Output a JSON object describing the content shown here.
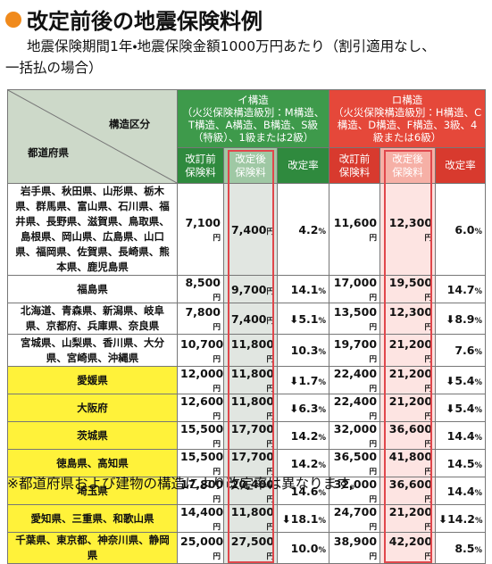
{
  "header": {
    "title": "改定前後の地震保険料例",
    "subtitle": [
      "地震保険期間1年・地震保険金額1000万円あたり（割引適用なし、",
      "一括払の場合）"
    ]
  },
  "table": {
    "corner_top": "構造区分",
    "corner_bottom": "都道府県",
    "groups": [
      {
        "name": "イ構造",
        "detail": "（火災保険構造級別：M構造、T構造、A構造、B構造、S級（特級）、1級または2級）"
      },
      {
        "name": "ロ構造",
        "detail": "（火災保険構造級別：H構造、C構造、D構造、F構造、3級、4級または6級）"
      }
    ],
    "columns": [
      "改訂前保険料",
      "改定後保険料",
      "改定率",
      "改訂前保険料",
      "改定後保険料",
      "改定率"
    ],
    "rows": [
      [
        "岩手県、秋田県、山形県、栃木県、群馬県、富山県、石川県、福井県、長野県、滋賀県、鳥取県、島根県、岡山県、広島県、山口県、福岡県、佐賀県、長崎県、熊本県、鹿児島県",
        "7,100円",
        "7,400円",
        "4.2%",
        "11,600円",
        "12,300円",
        "6.0%"
      ],
      [
        "福島県",
        "8,500円",
        "9,700円",
        "14.1%",
        "17,000円",
        "19,500円",
        "14.7%"
      ],
      [
        "北海道、青森県、新潟県、岐阜県、京都府、兵庫県、奈良県",
        "7,800円",
        "7,400円",
        "⬇5.1%",
        "13,500円",
        "12,300円",
        "⬇8.9%"
      ],
      [
        "宮城県、山梨県、香川県、大分県、宮崎県、沖縄県",
        "10,700円",
        "11,800円",
        "10.3%",
        "19,700円",
        "21,200円",
        "7.6%"
      ],
      [
        "愛媛県",
        "12,000円",
        "11,800円",
        "⬇1.7%",
        "22,400円",
        "21,200円",
        "⬇5.4%"
      ],
      [
        "大阪府",
        "12,600円",
        "11,800円",
        "⬇6.3%",
        "22,400円",
        "21,200円",
        "⬇5.4%"
      ],
      [
        "茨城県",
        "15,500円",
        "17,700円",
        "14.2%",
        "32,000円",
        "36,600円",
        "14.4%"
      ],
      [
        "徳島県、高知県",
        "15,500円",
        "17,700円",
        "14.2%",
        "36,500円",
        "41,800円",
        "14.5%"
      ],
      [
        "埼玉県",
        "17,800円",
        "20,400円",
        "14.6%",
        "32,000円",
        "36,600円",
        "14.4%"
      ],
      [
        "愛知県、三重県、和歌山県",
        "14,400円",
        "11,800円",
        "⬇18.1%",
        "24,700円",
        "21,200円",
        "⬇14.2%"
      ],
      [
        "千葉県、東京都、神奈川県、静岡県",
        "25,000円",
        "27,500円",
        "10.0%",
        "38,900円",
        "42,200円",
        "8.5%"
      ]
    ]
  },
  "footnote": "※都道府県および建物の構造により改定率は異なります。"
}
